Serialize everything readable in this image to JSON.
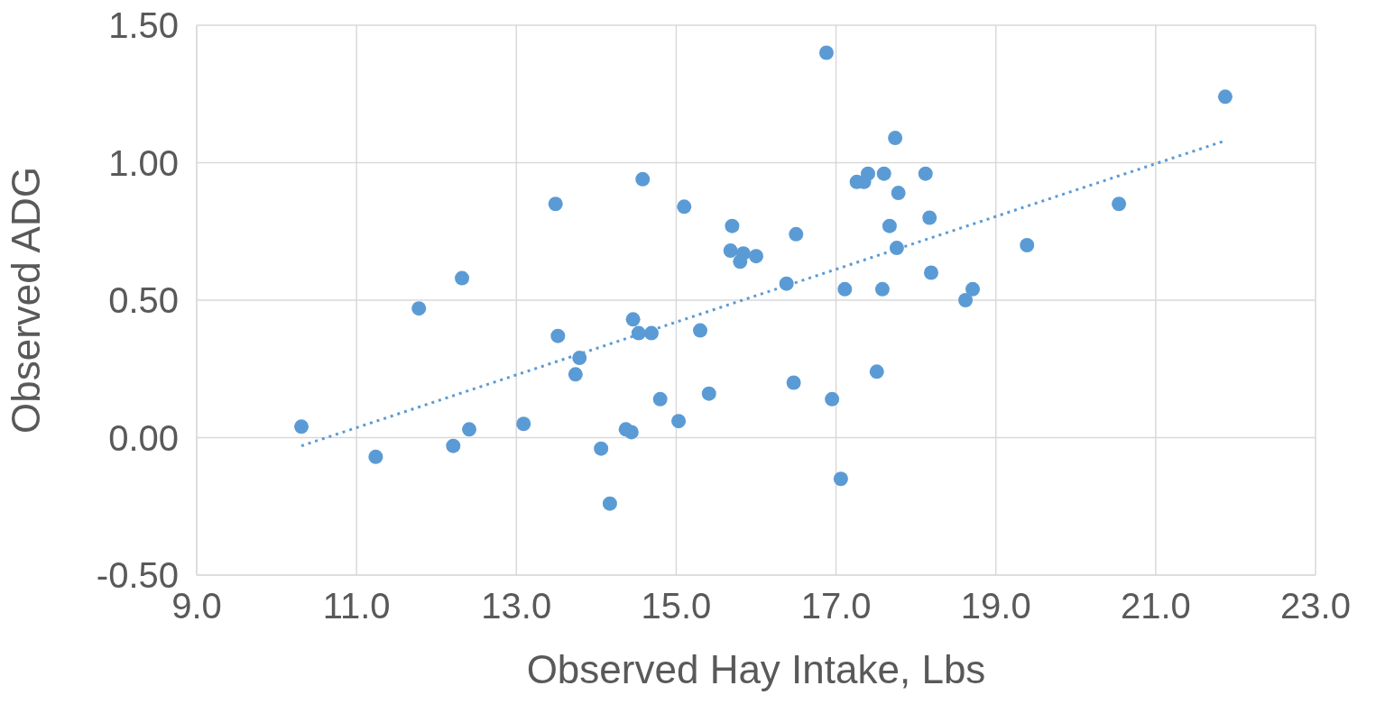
{
  "chart_data": {
    "type": "scatter",
    "xlabel": "Observed Hay Intake, Lbs",
    "ylabel": "Observed ADG",
    "xlim": [
      9,
      23
    ],
    "xticks": [
      {
        "value": 9,
        "label": "9.0"
      },
      {
        "value": 11,
        "label": "11.0"
      },
      {
        "value": 13,
        "label": "13.0"
      },
      {
        "value": 15,
        "label": "15.0"
      },
      {
        "value": 17,
        "label": "17.0"
      },
      {
        "value": 19,
        "label": "19.0"
      },
      {
        "value": 21,
        "label": "21.0"
      },
      {
        "value": 23,
        "label": "23.0"
      }
    ],
    "ylim": [
      -0.5,
      1.5
    ],
    "yticks": [
      {
        "value": -0.5,
        "label": "-0.50"
      },
      {
        "value": 0,
        "label": "0.00"
      },
      {
        "value": 0.5,
        "label": "0.50"
      },
      {
        "value": 1,
        "label": "1.00"
      },
      {
        "value": 1.5,
        "label": "1.50"
      }
    ],
    "grid": true,
    "legend": false,
    "marker": "circle",
    "series": [
      {
        "type": "scatter",
        "color": "#5b9bd5",
        "x": [
          10.31,
          11.24,
          11.78,
          12.32,
          12.21,
          12.41,
          13.09,
          13.49,
          13.52,
          13.79,
          13.74,
          14.06,
          14.17,
          14.37,
          14.44,
          14.46,
          14.53,
          14.69,
          14.58,
          14.8,
          15.03,
          15.1,
          15.3,
          15.41,
          15.68,
          15.7,
          15.8,
          15.84,
          16.0,
          16.38,
          16.47,
          16.5,
          16.88,
          16.95,
          17.06,
          17.11,
          17.26,
          17.35,
          17.4,
          17.51,
          17.58,
          17.6,
          17.67,
          17.74,
          17.76,
          17.78,
          18.12,
          18.17,
          18.19,
          18.62,
          18.71,
          19.39,
          20.54,
          21.87
        ],
        "values": [
          0.04,
          -0.07,
          0.47,
          0.58,
          -0.03,
          0.03,
          0.05,
          0.85,
          0.37,
          0.29,
          0.23,
          -0.04,
          -0.24,
          0.03,
          0.02,
          0.43,
          0.38,
          0.38,
          0.94,
          0.14,
          0.06,
          0.84,
          0.39,
          0.16,
          0.68,
          0.77,
          0.64,
          0.67,
          0.66,
          0.56,
          0.2,
          0.74,
          1.4,
          0.14,
          -0.15,
          0.54,
          0.93,
          0.93,
          0.96,
          0.24,
          0.54,
          0.96,
          0.77,
          1.09,
          0.69,
          0.89,
          0.96,
          0.8,
          0.6,
          0.5,
          0.54,
          0.7,
          0.85,
          1.24
        ]
      },
      {
        "type": "line",
        "color": "#5b9bd5",
        "line_style": "dotted",
        "marker": "none",
        "x": [
          10.31,
          21.87
        ],
        "values": [
          -0.03,
          1.08
        ]
      }
    ]
  }
}
